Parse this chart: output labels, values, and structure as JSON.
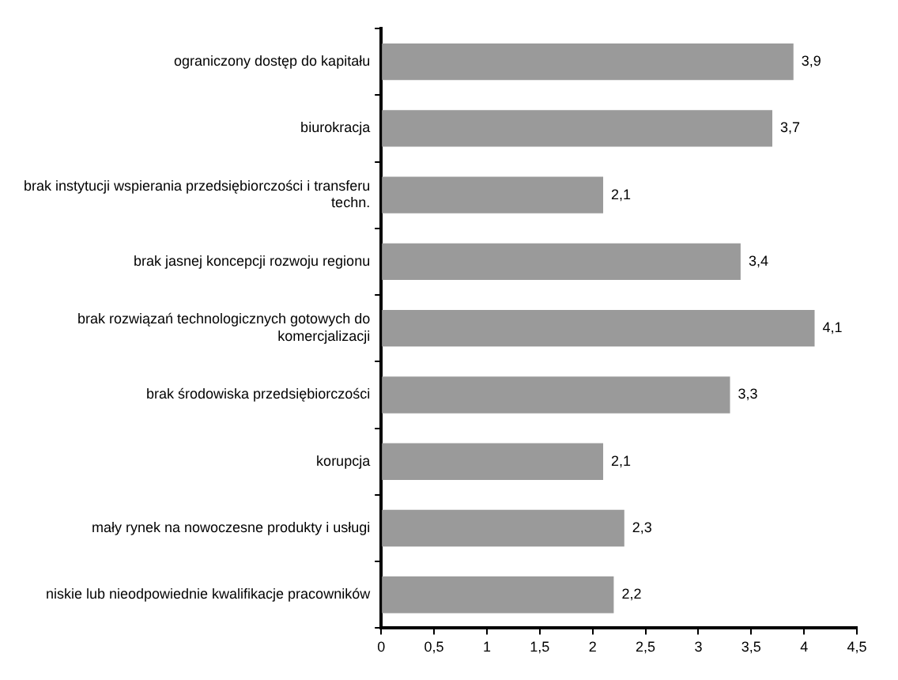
{
  "chart_data": {
    "type": "bar",
    "orientation": "horizontal",
    "categories": [
      "ograniczony dostęp do kapitału",
      "biurokracja",
      "brak instytucji wspierania przedsiębiorczości i transferu techn.",
      "brak jasnej koncepcji rozwoju regionu",
      "brak rozwiązań technologicznych gotowych do komercjalizacji",
      "brak środowiska przedsiębiorczości",
      "korupcja",
      "mały rynek na nowoczesne produkty i usługi",
      "niskie lub nieodpowiednie kwalifikacje pracowników"
    ],
    "values": [
      3.9,
      3.7,
      2.1,
      3.4,
      4.1,
      3.3,
      2.1,
      2.3,
      2.2
    ],
    "value_labels": [
      "3,9",
      "3,7",
      "2,1",
      "3,4",
      "4,1",
      "3,3",
      "2,1",
      "2,3",
      "2,2"
    ],
    "color": "#9a9a9a",
    "xlim": [
      0,
      4.5
    ],
    "xticks": [
      0,
      {
        "value": 0.5,
        "label": "0,5"
      },
      1,
      {
        "value": 1.5,
        "label": "1,5"
      },
      2,
      {
        "value": 2.5,
        "label": "2,5"
      },
      3,
      {
        "value": 3.5,
        "label": "3,5"
      },
      4,
      {
        "value": 4.5,
        "label": "4,5"
      }
    ],
    "grid": false,
    "legend": false
  }
}
